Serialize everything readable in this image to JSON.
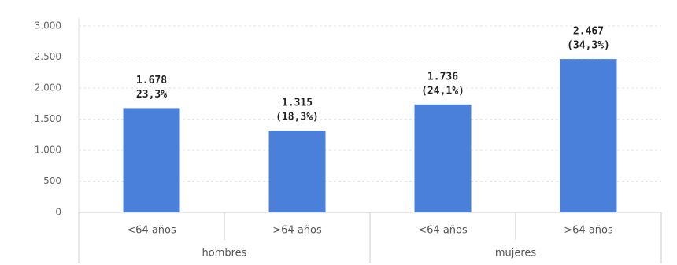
{
  "chart_data": {
    "type": "bar",
    "categories": [
      "<64 años",
      ">64 años",
      "<64 años",
      ">64 años"
    ],
    "groups": [
      "hombres",
      "mujeres"
    ],
    "values": [
      1678,
      1315,
      1736,
      2467
    ],
    "value_labels": [
      "1.678",
      "1.315",
      "1.736",
      "2.467"
    ],
    "share_labels": [
      "23,3%",
      "(18,3%)",
      "(24,1%)",
      "(34,3%)"
    ],
    "color": "#4a80d9",
    "ylim": [
      0,
      3000
    ],
    "yticks": [
      0,
      500,
      {
        "value": 1000,
        "label": "1.000"
      },
      {
        "value": 1500,
        "label": "1.500"
      },
      {
        "value": 2000,
        "label": "2.000"
      },
      {
        "value": 2500,
        "label": "2.500"
      },
      {
        "value": 3000,
        "label": "3.000"
      }
    ],
    "grid": true
  }
}
